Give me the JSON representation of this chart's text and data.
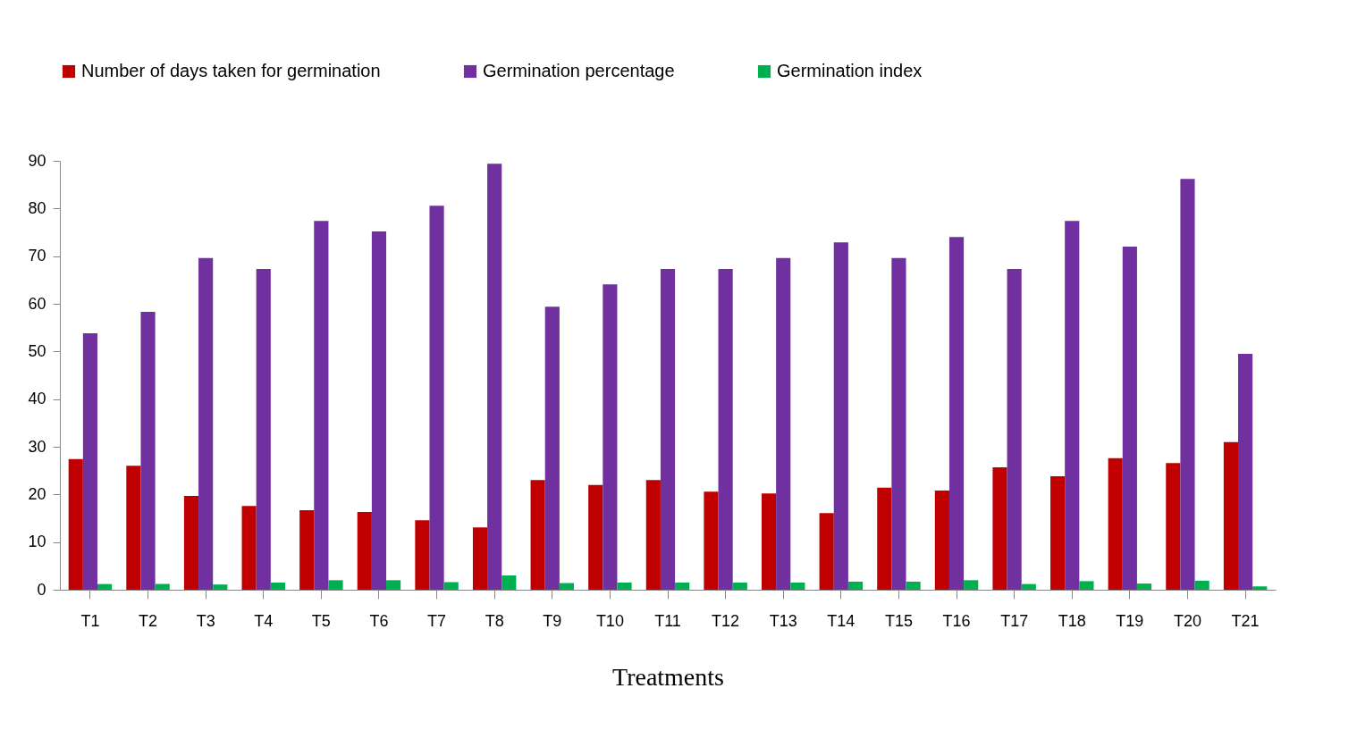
{
  "chart_data": {
    "type": "bar",
    "xlabel": "Treatments",
    "categories": [
      "T1",
      "T2",
      "T3",
      "T4",
      "T5",
      "T6",
      "T7",
      "T8",
      "T9",
      "T10",
      "T11",
      "T12",
      "T13",
      "T14",
      "T15",
      "T16",
      "T17",
      "T18",
      "T19",
      "T20",
      "T21"
    ],
    "series": [
      {
        "name": "Number of days taken for germination",
        "color": "#c00000",
        "values": [
          27.4,
          26,
          19.7,
          17.6,
          16.7,
          16.3,
          14.6,
          13.1,
          23,
          22,
          23,
          20.6,
          20.2,
          16.1,
          21.4,
          20.8,
          25.7,
          23.8,
          27.6,
          26.6,
          31
        ]
      },
      {
        "name": "Germination percentage",
        "color": "#7030a0",
        "values": [
          53.8,
          58.3,
          69.6,
          67.3,
          77.4,
          75.2,
          80.6,
          89.4,
          59.4,
          64.1,
          67.3,
          67.3,
          69.6,
          72.9,
          69.6,
          74,
          67.3,
          77.4,
          72,
          86.2,
          49.5
        ]
      },
      {
        "name": "Germination index",
        "color": "#00b050",
        "values": [
          1.2,
          1.2,
          1.1,
          1.5,
          2,
          2,
          1.6,
          3,
          1.4,
          1.5,
          1.5,
          1.5,
          1.5,
          1.7,
          1.7,
          2,
          1.2,
          1.8,
          1.3,
          1.9,
          0.7
        ]
      }
    ],
    "ylim": [
      0,
      90
    ],
    "yticks": [
      0,
      10,
      20,
      30,
      40,
      50,
      60,
      70,
      80,
      90
    ],
    "grid": false,
    "legend": "top"
  }
}
